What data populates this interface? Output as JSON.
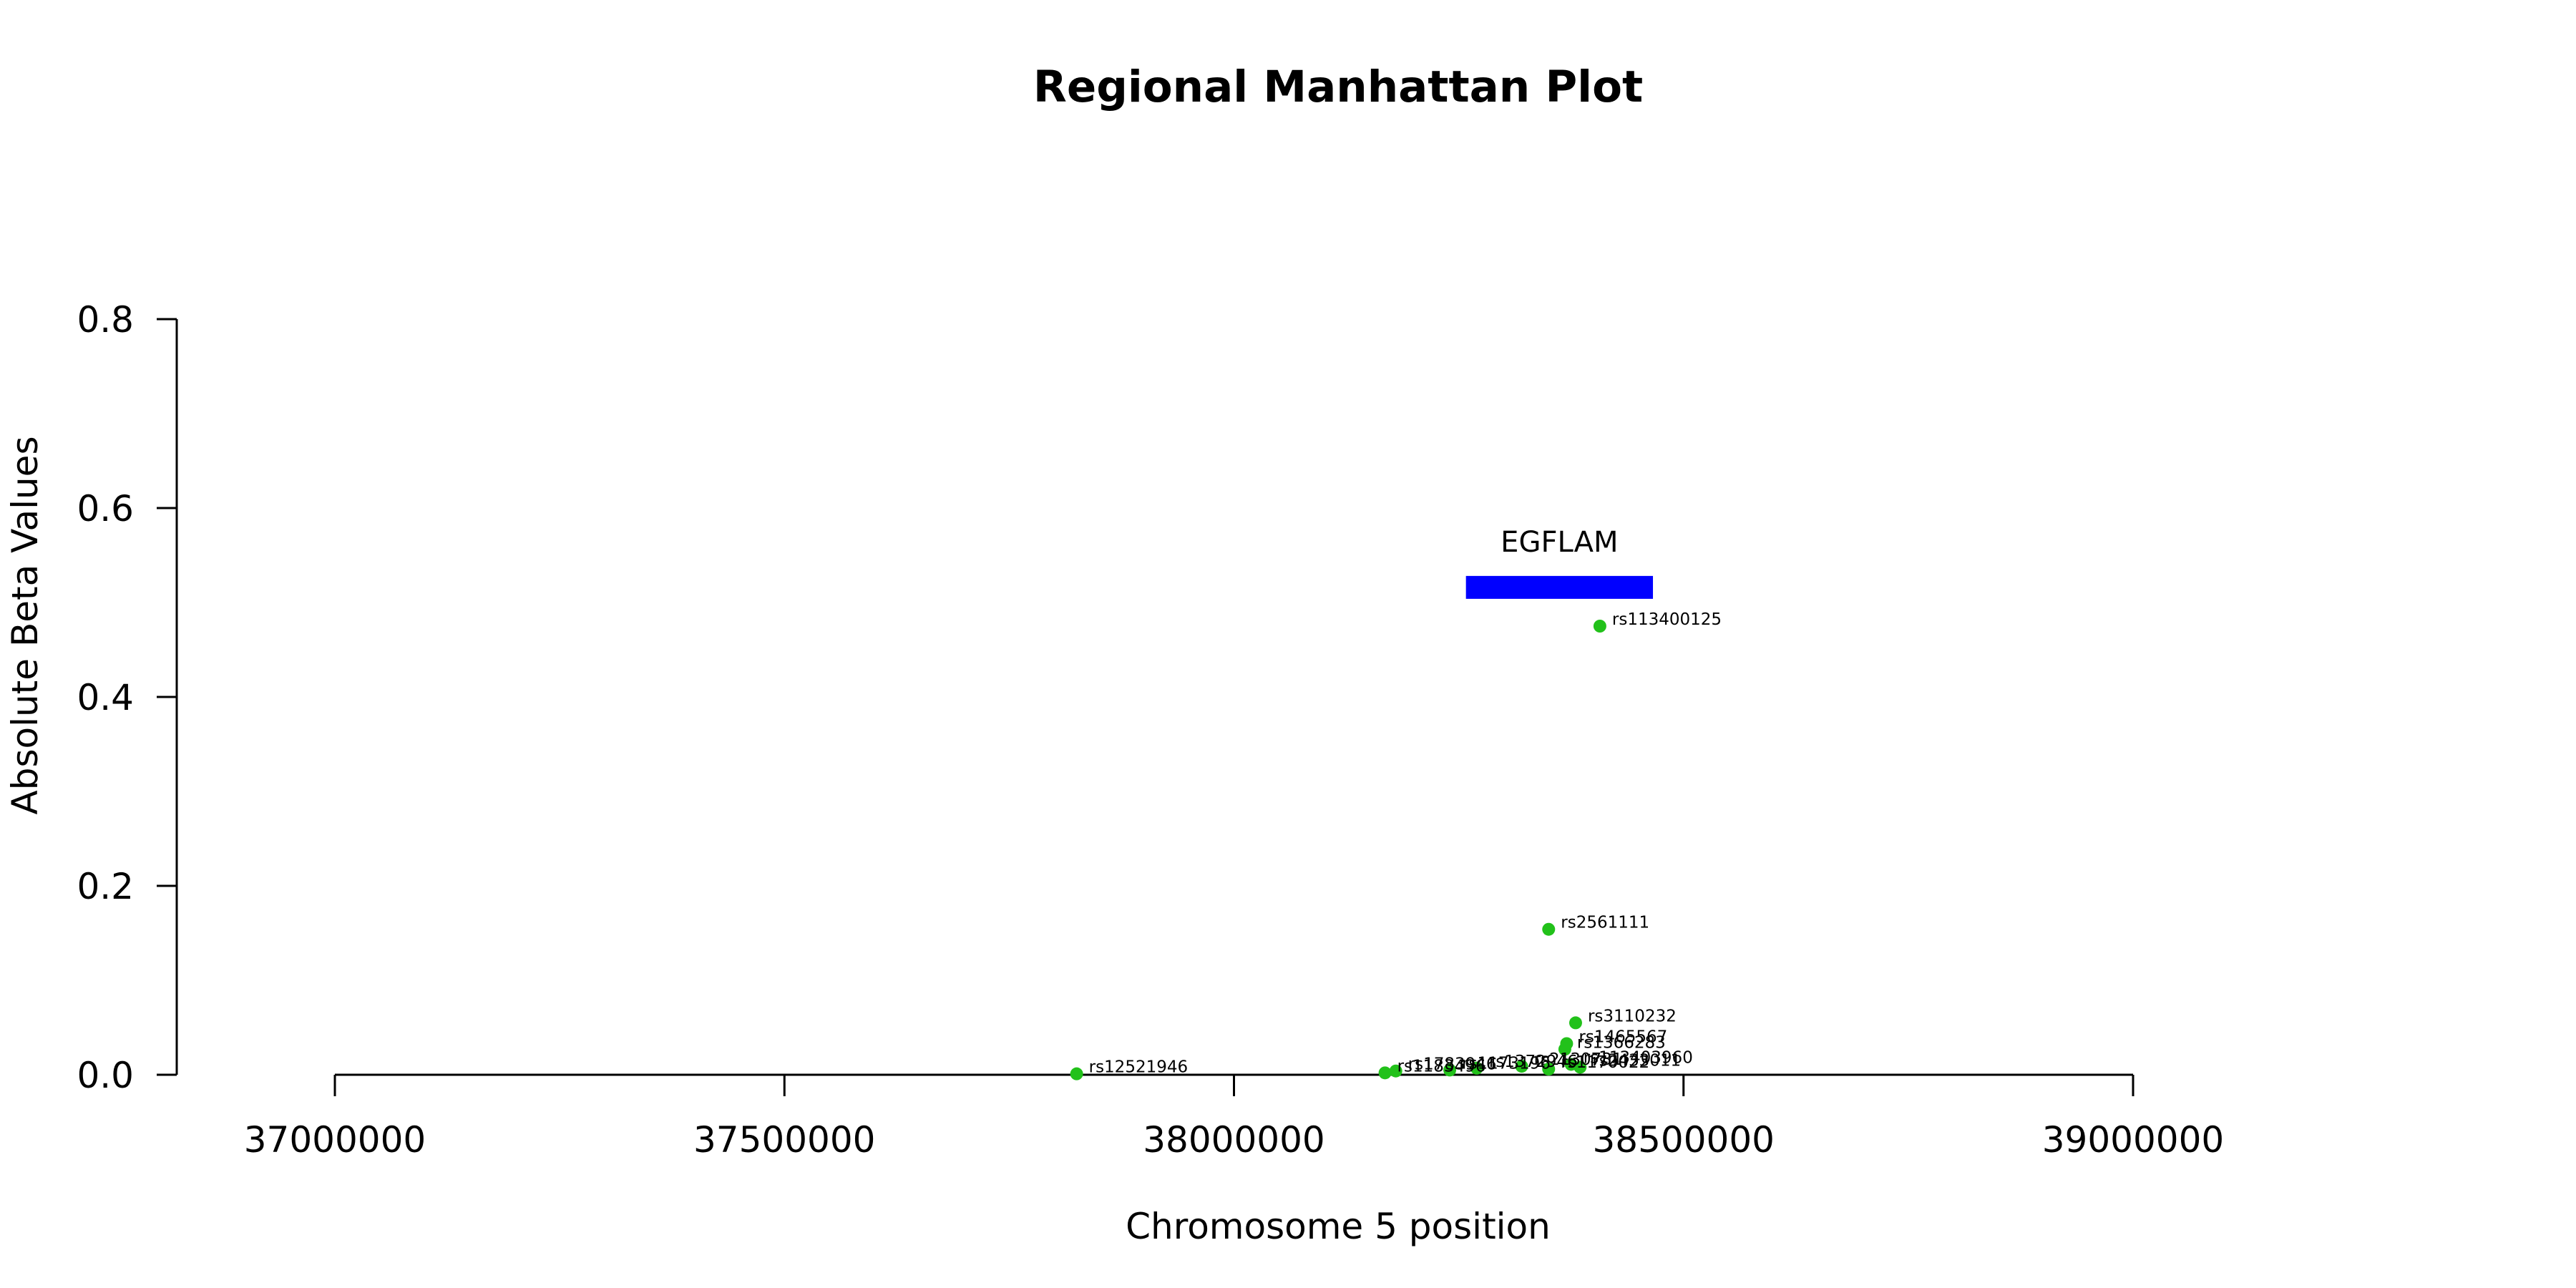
{
  "chart_data": {
    "type": "scatter",
    "title": "Regional Manhattan Plot",
    "xlabel": "Chromosome 5 position",
    "ylabel": "Absolute Beta Values",
    "xlim": [
      37000000,
      39000000
    ],
    "ylim": [
      0,
      0.8
    ],
    "x_ticks": [
      37000000,
      37500000,
      38000000,
      38500000,
      39000000
    ],
    "x_tick_labels": [
      "37000000",
      "37500000",
      "38000000",
      "38500000",
      "39000000"
    ],
    "y_ticks": [
      0,
      0.2,
      0.4,
      0.6,
      0.8
    ],
    "y_tick_labels": [
      "0.0",
      "0.2",
      "0.4",
      "0.6",
      "0.8"
    ],
    "grid": false,
    "point_color": "#22C11A",
    "points": [
      {
        "label": "rs113400125",
        "x": 38407000,
        "y": 0.475
      },
      {
        "label": "rs2561111",
        "x": 38350000,
        "y": 0.154
      },
      {
        "label": "rs3110232",
        "x": 38380000,
        "y": 0.055
      },
      {
        "label": "rs1465567",
        "x": 38370000,
        "y": 0.033
      },
      {
        "label": "rs1366283",
        "x": 38368000,
        "y": 0.027
      },
      {
        "label": "rs113403960",
        "x": 38375000,
        "y": 0.011
      },
      {
        "label": "rs2433011",
        "x": 38385000,
        "y": 0.008
      },
      {
        "label": "rs2130731",
        "x": 38320000,
        "y": 0.009
      },
      {
        "label": "rs1170022",
        "x": 38350000,
        "y": 0.006
      },
      {
        "label": "rs1372946",
        "x": 38270000,
        "y": 0.007
      },
      {
        "label": "rs1173196",
        "x": 38240000,
        "y": 0.005
      },
      {
        "label": "rs1783946",
        "x": 38180000,
        "y": 0.004
      },
      {
        "label": "rs1183496",
        "x": 38168000,
        "y": 0.002
      },
      {
        "label": "rs12521946",
        "x": 37825000,
        "y": 0.001
      }
    ],
    "genes": [
      {
        "name": "EGFLAM",
        "start": 38258000,
        "end": 38466000,
        "y": 0.516,
        "color": "#0000FF"
      }
    ]
  }
}
